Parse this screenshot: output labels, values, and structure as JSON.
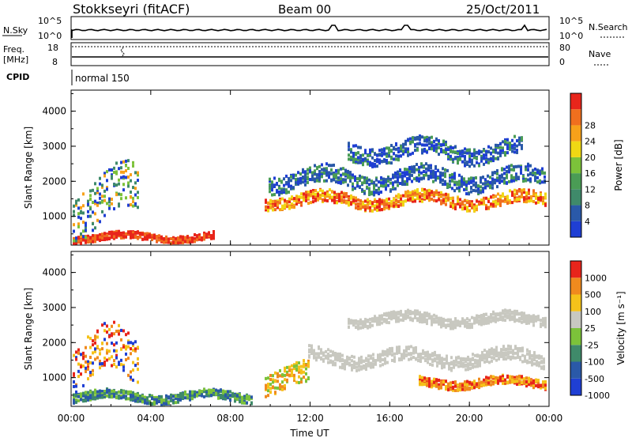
{
  "header": {
    "station": "Stokkseyri (fitACF)",
    "beam": "Beam 00",
    "date": "25/Oct/2011"
  },
  "aux_panels": {
    "sky_label": "N.Sky",
    "search_label": "N.Search",
    "sky_ticks": [
      "10^5",
      "10^0"
    ],
    "search_ticks": [
      "10^5",
      "10^0"
    ],
    "freq_label": "Freq.",
    "freq_unit": "[MHz]",
    "freq_ticks": [
      "18",
      "8"
    ],
    "nave_label": "Nave",
    "nave_ticks": [
      "80",
      "0"
    ],
    "cpid_label": "CPID",
    "cpid_value": "normal 150"
  },
  "chart_data": [
    {
      "type": "heatmap",
      "ylabel": "Slant Range [km]",
      "xlabel": "Time UT",
      "x_ticks": [
        "00:00",
        "04:00",
        "08:00",
        "12:00",
        "16:00",
        "20:00",
        "00:00"
      ],
      "y_ticks": [
        1000,
        2000,
        3000,
        4000
      ],
      "ylim": [
        180,
        4600
      ],
      "colorbar": {
        "label": "Power [dB]",
        "ticks": [
          "4",
          "8",
          "12",
          "16",
          "20",
          "24",
          "28"
        ],
        "colors": [
          "#1f3fd4",
          "#2a59a8",
          "#3f8a6a",
          "#4a9c55",
          "#7cc23a",
          "#f0d814",
          "#f7a11a",
          "#f06f1e",
          "#e8251b"
        ]
      }
    },
    {
      "type": "heatmap",
      "ylabel": "Slant Range [km]",
      "xlabel": "Time UT",
      "x_ticks": [
        "00:00",
        "04:00",
        "08:00",
        "12:00",
        "16:00",
        "20:00",
        "00:00"
      ],
      "y_ticks": [
        1000,
        2000,
        3000,
        4000
      ],
      "ylim": [
        180,
        4600
      ],
      "colorbar": {
        "label": "Velocity [m s⁻¹]",
        "ticks": [
          "1000",
          "500",
          "100",
          "25",
          "-25",
          "-100",
          "-500",
          "-1000"
        ],
        "colors": [
          "#1f3fd4",
          "#2a59a8",
          "#3f8a6a",
          "#7cc23a",
          "#c8c8c0",
          "#f5c21a",
          "#f08a1e",
          "#e8251b"
        ]
      }
    }
  ]
}
